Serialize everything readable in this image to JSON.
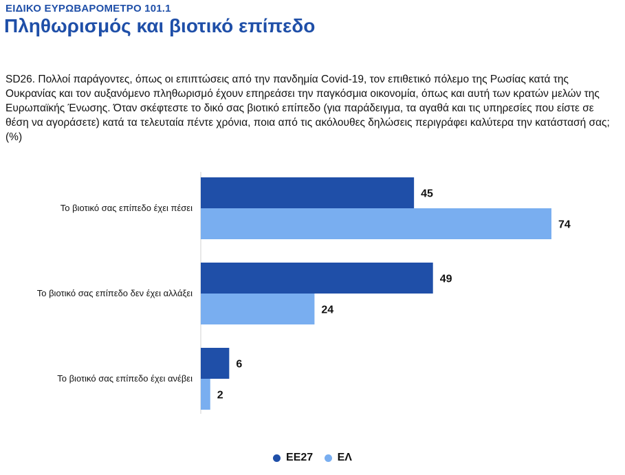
{
  "header": {
    "supertitle": "ΕΙΔΙΚΟ ΕΥΡΩΒΑΡΟΜΕΤΡΟ 101.1",
    "title": "Πληθωρισμός και βιοτικό επίπεδο"
  },
  "question": "SD26. Πολλοί παράγοντες, όπως οι επιπτώσεις από την πανδημία Covid-19, τον επιθετικό πόλεμο της Ρωσίας κατά της Ουκρανίας και τον αυξανόμενο πληθωρισμό έχουν επηρεάσει την παγκόσμια οικονομία, όπως και αυτή των κρατών μελών της Ευρωπαϊκής Ένωσης. Όταν σκέφτεστε το δικό σας βιοτικό επίπεδο (για παράδειγμα, τα αγαθά και τις υπηρεσίες που είστε σε θέση να αγοράσετε) κατά τα τελευταία πέντε χρόνια, ποια από τις ακόλουθες δηλώσεις περιγράφει καλύτερα την κατάστασή σας; (%)",
  "colors": {
    "eu27": "#1f4fa8",
    "el": "#79aef0"
  },
  "chart_data": {
    "type": "bar",
    "orientation": "horizontal",
    "categories": [
      "Το βιοτικό σας επίπεδο έχει πέσει",
      "Το βιοτικό σας επίπεδο δεν έχει αλλάξει",
      "Το βιοτικό σας επίπεδο έχει ανέβει"
    ],
    "series": [
      {
        "name": "ΕΕ27",
        "color": "#1f4fa8",
        "values": [
          45,
          49,
          6
        ]
      },
      {
        "name": "ΕΛ",
        "color": "#79aef0",
        "values": [
          74,
          24,
          2
        ]
      }
    ],
    "xlim": [
      0,
      74
    ],
    "grid": false,
    "legend": "bottom-center",
    "data_labels": true
  }
}
